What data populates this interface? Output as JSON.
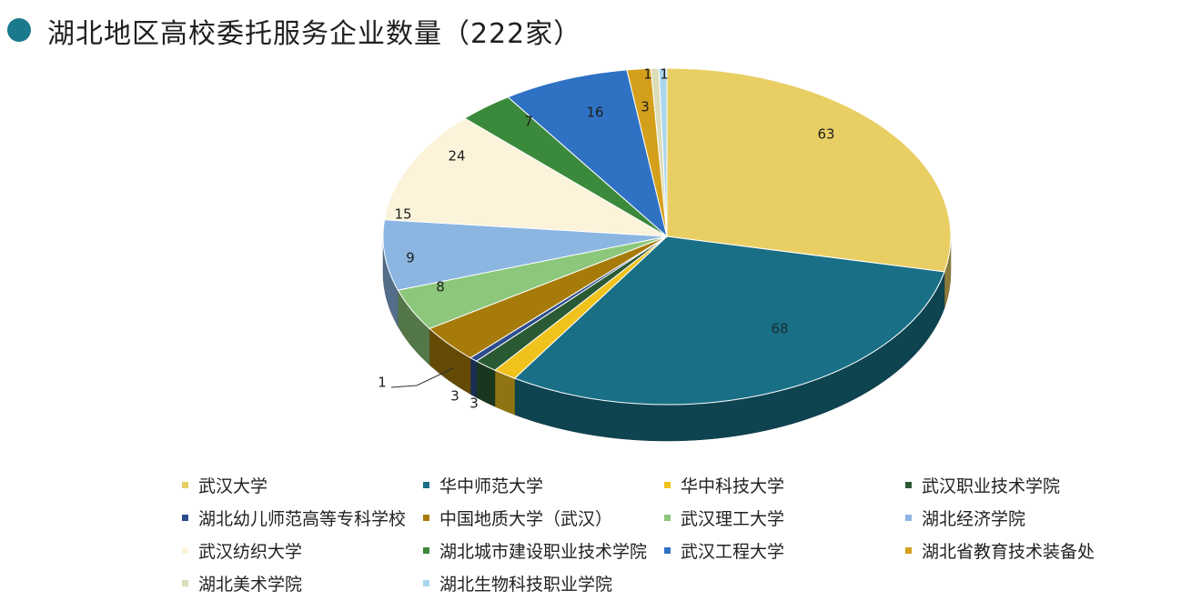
{
  "header": {
    "title": "湖北地区高校委托服务企业数量（222家）",
    "dot_color": "#1a7a8c"
  },
  "chart_data": {
    "type": "pie",
    "title": "湖北地区高校委托服务企业数量（222家）",
    "legend_position": "bottom",
    "slices": [
      {
        "name": "武汉大学",
        "value": 63,
        "color": "#e9ce63"
      },
      {
        "name": "华中师范大学",
        "value": 68,
        "color": "#186f86"
      },
      {
        "name": "华中科技大学",
        "value": 3,
        "color": "#efc21c"
      },
      {
        "name": "武汉职业技术学院",
        "value": 3,
        "color": "#2a5a34"
      },
      {
        "name": "湖北幼儿师范高等专科学校",
        "value": 1,
        "color": "#2c4c8c"
      },
      {
        "name": "中国地质大学（武汉）",
        "value": 8,
        "color": "#a67b09"
      },
      {
        "name": "武汉理工大学",
        "value": 9,
        "color": "#8cc77c"
      },
      {
        "name": "湖北经济学院",
        "value": 15,
        "color": "#8cb6e2"
      },
      {
        "name": "武汉纺织大学",
        "value": 24,
        "color": "#fbf3da"
      },
      {
        "name": "湖北城市建设职业技术学院",
        "value": 7,
        "color": "#3b8a3b"
      },
      {
        "name": "武汉工程大学",
        "value": 16,
        "color": "#2f72c4"
      },
      {
        "name": "湖北省教育技术装备处",
        "value": 3,
        "color": "#d4a01c"
      },
      {
        "name": "湖北美术学院",
        "value": 1,
        "color": "#dcdcb8"
      },
      {
        "name": "湖北生物科技职业学院",
        "value": 1,
        "color": "#a9d6ee"
      }
    ]
  }
}
